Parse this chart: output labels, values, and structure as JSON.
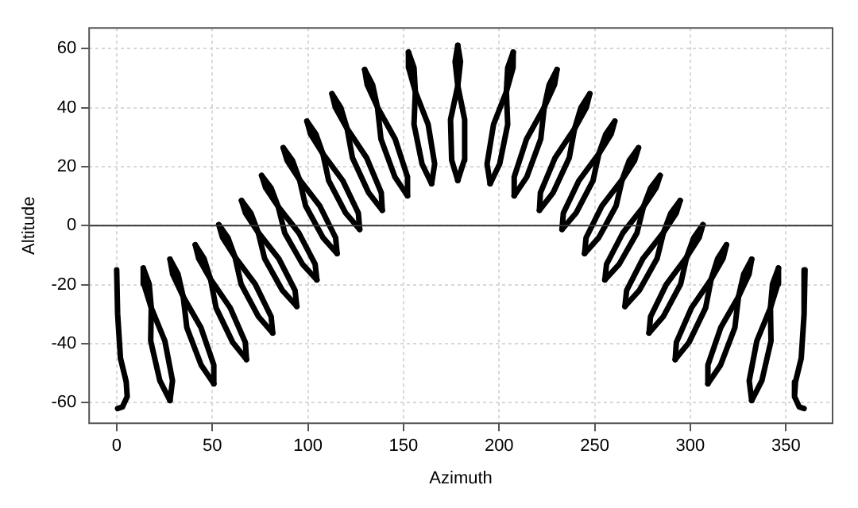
{
  "chart_data": {
    "type": "line",
    "xlabel": "Azimuth",
    "ylabel": "Altitude",
    "xlim": [
      -14.4,
      374.4
    ],
    "ylim": [
      -67,
      67
    ],
    "xticks": [
      0,
      50,
      100,
      150,
      200,
      250,
      300,
      350
    ],
    "yticks": [
      -60,
      -40,
      -20,
      0,
      20,
      40,
      60
    ],
    "grid": true,
    "legend": false,
    "marker": "none",
    "line_style": "solid",
    "ref_lines": [
      {
        "axis": "y",
        "value": 0,
        "color": "#333333"
      }
    ],
    "series": [
      {
        "color": "#000000",
        "x": [
          0,
          0.5,
          2,
          5,
          5.5,
          3,
          0.5
        ],
        "values": [
          -15,
          -30,
          -45,
          -53,
          -58,
          -61.5,
          -62
        ]
      },
      {
        "color": "#000000",
        "x": [
          13.9,
          17.0,
          18.1,
          17.8,
          22.6,
          27.9
        ],
        "values": [
          -14.4,
          -19.8,
          -27.9,
          -39.1,
          -52.6,
          -59.3
        ]
      },
      {
        "color": "#000000",
        "x": [
          27.9,
          29.2,
          25.2,
          18.1,
          14.2,
          13.9
        ],
        "values": [
          -59.3,
          -52.6,
          -39.1,
          -27.9,
          -19.8,
          -14.4
        ]
      },
      {
        "color": "#000000",
        "x": [
          27.9,
          32.1,
          34.8,
          36.7,
          44.2,
          50.8
        ],
        "values": [
          -11.4,
          -16.5,
          -24.1,
          -34.6,
          -47.3,
          -53.6
        ]
      },
      {
        "color": "#000000",
        "x": [
          50.8,
          50.8,
          44.1,
          34.8,
          29.3,
          27.9
        ],
        "values": [
          -53.6,
          -47.3,
          -34.6,
          -24.1,
          -16.5,
          -11.4
        ]
      },
      {
        "color": "#000000",
        "x": [
          41.1,
          45.7,
          49.1,
          52.0,
          60.7,
          67.9
        ],
        "values": [
          -6.5,
          -11.2,
          -18.2,
          -27.9,
          -39.6,
          -45.4
        ]
      },
      {
        "color": "#000000",
        "x": [
          67.9,
          67.3,
          59.4,
          49.1,
          42.9,
          41.1
        ],
        "values": [
          -45.4,
          -39.6,
          -27.9,
          -18.2,
          -11.2,
          -6.5
        ]
      },
      {
        "color": "#000000",
        "x": [
          53.4,
          58.2,
          61.9,
          65.1,
          74.2,
          81.6
        ],
        "values": [
          0.3,
          -4.1,
          -10.7,
          -19.9,
          -30.9,
          -36.4
        ]
      },
      {
        "color": "#000000",
        "x": [
          81.6,
          80.8,
          72.5,
          61.9,
          55.4,
          53.4
        ],
        "values": [
          -36.4,
          -30.9,
          -19.9,
          -10.7,
          -4.1,
          0.3
        ]
      },
      {
        "color": "#000000",
        "x": [
          65.3,
          70.2,
          74.0,
          77.4,
          86.7,
          94.2
        ],
        "values": [
          8.5,
          4.2,
          -2.3,
          -11.2,
          -22.0,
          -27.4
        ]
      },
      {
        "color": "#000000",
        "x": [
          94.2,
          93.3,
          84.8,
          74.0,
          67.4,
          65.3
        ],
        "values": [
          -27.4,
          -22.0,
          -11.2,
          -2.3,
          4.2,
          8.5
        ]
      },
      {
        "color": "#000000",
        "x": [
          75.8,
          80.7,
          84.5,
          87.9,
          97.2,
          104.7
        ],
        "values": [
          17,
          12.8,
          6.4,
          -2.5,
          -13.1,
          -18.4
        ]
      },
      {
        "color": "#000000",
        "x": [
          104.7,
          103.8,
          95.3,
          84.5,
          77.9,
          75.8
        ],
        "values": [
          -18.4,
          -13.1,
          -2.5,
          6.4,
          12.8,
          17
        ]
      },
      {
        "color": "#000000",
        "x": [
          87.1,
          91.9,
          95.6,
          98.8,
          107.9,
          115.3
        ],
        "values": [
          26.4,
          22.1,
          15.6,
          6.7,
          -4.1,
          -9.5
        ]
      },
      {
        "color": "#000000",
        "x": [
          115.3,
          114.5,
          106.2,
          95.6,
          89.1,
          87.1
        ],
        "values": [
          -9.5,
          -4.1,
          6.7,
          15.6,
          22.1,
          26.4
        ]
      },
      {
        "color": "#000000",
        "x": [
          99.5,
          104.2,
          107.8,
          110.9,
          119.8,
          127.1
        ],
        "values": [
          35.4,
          31.0,
          24.4,
          15.2,
          4.2,
          -1.3
        ]
      },
      {
        "color": "#000000",
        "x": [
          127.1,
          126.4,
          118.3,
          107.8,
          101.4,
          99.5
        ],
        "values": [
          -1.3,
          4.2,
          15.2,
          24.4,
          31.0,
          35.4
        ]
      },
      {
        "color": "#000000",
        "x": [
          112.6,
          117.2,
          120.5,
          123.3,
          131.8,
          138.9
        ],
        "values": [
          44.7,
          40.0,
          32.9,
          23.0,
          11.1,
          5.2
        ]
      },
      {
        "color": "#000000",
        "x": [
          138.9,
          138.4,
          130.7,
          120.5,
          114.4,
          112.6
        ],
        "values": [
          5.2,
          11.1,
          23.0,
          32.9,
          40.0,
          44.7
        ]
      },
      {
        "color": "#000000",
        "x": [
          129.7,
          133.8,
          136.4,
          138.2,
          145.5,
          152.1
        ],
        "values": [
          52.9,
          47.8,
          40.1,
          29.4,
          16.5,
          10.1
        ]
      },
      {
        "color": "#000000",
        "x": [
          152.1,
          152.1,
          145.6,
          136.4,
          131.0,
          129.7
        ],
        "values": [
          10.1,
          16.5,
          29.4,
          40.1,
          47.8,
          52.9
        ]
      },
      {
        "color": "#000000",
        "x": [
          152.6,
          155.5,
          156.2,
          155.5,
          159.7,
          164.7
        ],
        "values": [
          58.8,
          53.5,
          45.4,
          34.3,
          20.9,
          14.2
        ]
      },
      {
        "color": "#000000",
        "x": [
          164.7,
          166.3,
          162.9,
          156.2,
          152.7,
          152.6
        ],
        "values": [
          14.2,
          20.9,
          34.3,
          45.4,
          53.5,
          58.8
        ]
      },
      {
        "color": "#000000",
        "x": [
          178.4,
          179.8,
          178.4,
          174.6,
          175.2,
          178.4
        ],
        "values": [
          61.1,
          55.6,
          47.4,
          35.9,
          22.2,
          15.3
        ]
      },
      {
        "color": "#000000",
        "x": [
          178.4,
          181.8,
          182.0,
          178.4,
          177.0,
          178.4
        ],
        "values": [
          15.3,
          22.2,
          35.9,
          47.4,
          55.6,
          61.1
        ]
      },
      {
        "color": "#000000",
        "x": [
          207.4,
          204.5,
          203.8,
          204.5,
          200.3,
          195.3
        ],
        "values": [
          58.8,
          53.5,
          45.4,
          34.3,
          20.9,
          14.2
        ]
      },
      {
        "color": "#000000",
        "x": [
          195.3,
          193.7,
          197.1,
          203.8,
          207.3,
          207.4
        ],
        "values": [
          14.2,
          20.9,
          34.3,
          45.4,
          53.5,
          58.8
        ]
      },
      {
        "color": "#000000",
        "x": [
          230.3,
          226.2,
          223.6,
          221.8,
          214.5,
          207.9
        ],
        "values": [
          52.9,
          47.8,
          40.1,
          29.4,
          16.5,
          10.1
        ]
      },
      {
        "color": "#000000",
        "x": [
          207.9,
          207.9,
          214.4,
          223.6,
          229.0,
          230.3
        ],
        "values": [
          10.1,
          16.5,
          29.4,
          40.1,
          47.8,
          52.9
        ]
      },
      {
        "color": "#000000",
        "x": [
          247.4,
          242.8,
          239.5,
          236.7,
          228.2,
          221.1
        ],
        "values": [
          44.7,
          40.0,
          32.9,
          23.0,
          11.1,
          5.2
        ]
      },
      {
        "color": "#000000",
        "x": [
          221.1,
          221.6,
          229.3,
          239.5,
          245.6,
          247.4
        ],
        "values": [
          5.2,
          11.1,
          23.0,
          32.9,
          40.0,
          44.7
        ]
      },
      {
        "color": "#000000",
        "x": [
          260.5,
          255.8,
          252.2,
          249.1,
          240.2,
          232.9
        ],
        "values": [
          35.4,
          31.0,
          24.4,
          15.2,
          4.2,
          -1.3
        ]
      },
      {
        "color": "#000000",
        "x": [
          232.9,
          233.6,
          241.7,
          252.2,
          258.6,
          260.5
        ],
        "values": [
          -1.3,
          4.2,
          15.2,
          24.4,
          31.0,
          35.4
        ]
      },
      {
        "color": "#000000",
        "x": [
          272.9,
          268.1,
          264.4,
          261.2,
          252.1,
          244.7
        ],
        "values": [
          26.4,
          22.1,
          15.6,
          6.7,
          -4.1,
          -9.5
        ]
      },
      {
        "color": "#000000",
        "x": [
          244.7,
          245.5,
          253.8,
          264.4,
          270.9,
          272.9
        ],
        "values": [
          -9.5,
          -4.1,
          6.7,
          15.6,
          22.1,
          26.4
        ]
      },
      {
        "color": "#000000",
        "x": [
          284.2,
          279.3,
          275.5,
          272.1,
          262.8,
          255.3
        ],
        "values": [
          17,
          12.8,
          6.4,
          -2.5,
          -13.1,
          -18.4
        ]
      },
      {
        "color": "#000000",
        "x": [
          255.3,
          256.2,
          264.7,
          275.5,
          282.1,
          284.2
        ],
        "values": [
          -18.4,
          -13.1,
          -2.5,
          6.4,
          12.8,
          17
        ]
      },
      {
        "color": "#000000",
        "x": [
          294.7,
          289.8,
          286.0,
          282.6,
          273.3,
          265.8
        ],
        "values": [
          8.5,
          4.2,
          -2.3,
          -11.2,
          -22.0,
          -27.4
        ]
      },
      {
        "color": "#000000",
        "x": [
          265.8,
          266.7,
          275.2,
          286.0,
          292.6,
          294.7
        ],
        "values": [
          -27.4,
          -22.0,
          -11.2,
          -2.3,
          4.2,
          8.5
        ]
      },
      {
        "color": "#000000",
        "x": [
          306.6,
          301.8,
          298.1,
          294.9,
          285.8,
          278.4
        ],
        "values": [
          0.3,
          -4.1,
          -10.7,
          -19.9,
          -30.9,
          -36.4
        ]
      },
      {
        "color": "#000000",
        "x": [
          278.4,
          279.2,
          287.5,
          298.1,
          304.6,
          306.6
        ],
        "values": [
          -36.4,
          -30.9,
          -19.9,
          -10.7,
          -4.1,
          0.3
        ]
      },
      {
        "color": "#000000",
        "x": [
          318.9,
          314.3,
          310.9,
          308.0,
          299.3,
          292.1
        ],
        "values": [
          -6.5,
          -11.2,
          -18.2,
          -27.9,
          -39.6,
          -45.4
        ]
      },
      {
        "color": "#000000",
        "x": [
          292.1,
          292.7,
          300.6,
          310.9,
          317.1,
          318.9
        ],
        "values": [
          -45.4,
          -39.6,
          -27.9,
          -18.2,
          -11.2,
          -6.5
        ]
      },
      {
        "color": "#000000",
        "x": [
          332.1,
          327.9,
          325.2,
          323.3,
          315.8,
          309.2
        ],
        "values": [
          -11.4,
          -16.5,
          -24.1,
          -34.6,
          -47.3,
          -53.6
        ]
      },
      {
        "color": "#000000",
        "x": [
          309.2,
          309.2,
          315.9,
          325.2,
          330.7,
          332.1
        ],
        "values": [
          -53.6,
          -47.3,
          -34.6,
          -24.1,
          -16.5,
          -11.4
        ]
      },
      {
        "color": "#000000",
        "x": [
          346.1,
          343.0,
          341.9,
          342.2,
          337.4,
          332.1
        ],
        "values": [
          -14.4,
          -19.8,
          -27.9,
          -39.1,
          -52.6,
          -59.3
        ]
      },
      {
        "color": "#000000",
        "x": [
          332.1,
          330.8,
          334.8,
          341.9,
          345.8,
          346.1
        ],
        "values": [
          -59.3,
          -52.6,
          -39.1,
          -27.9,
          -19.8,
          -14.4
        ]
      },
      {
        "color": "#000000",
        "x": [
          360,
          359.5,
          358,
          355,
          354.5,
          357,
          359.5
        ],
        "values": [
          -15,
          -30,
          -45,
          -53,
          -58,
          -61.5,
          -62
        ]
      }
    ]
  }
}
